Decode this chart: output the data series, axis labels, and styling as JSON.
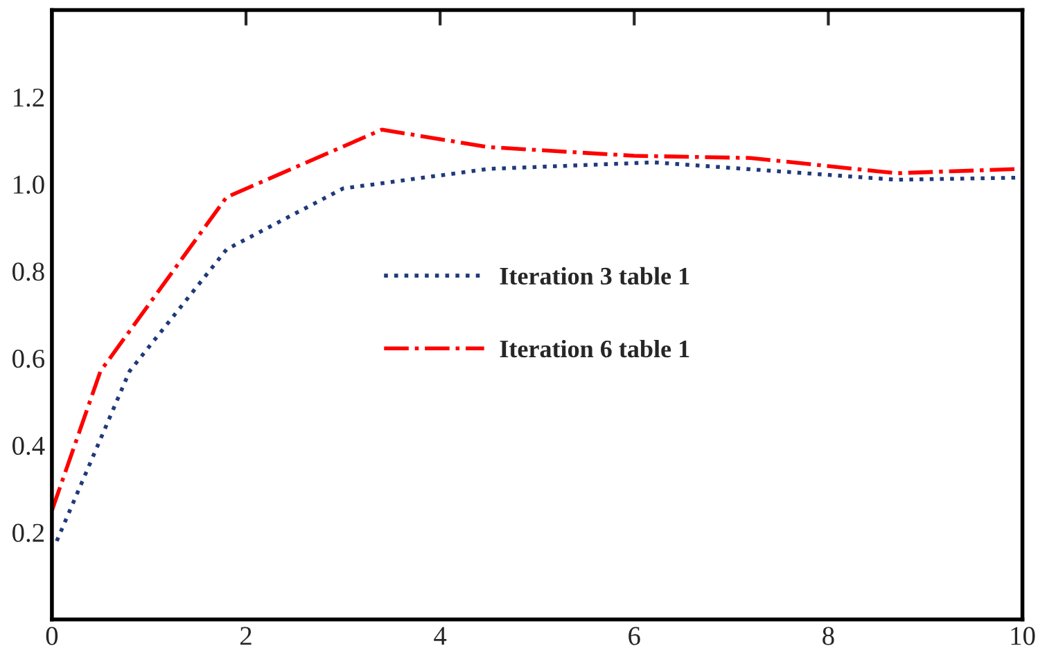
{
  "chart_data": {
    "type": "line",
    "xlim": [
      0,
      10
    ],
    "ylim": [
      0,
      1.4
    ],
    "xticks": [
      0,
      2,
      4,
      6,
      8,
      10
    ],
    "yticks": [
      0.2,
      0.4,
      0.6,
      0.8,
      {
        "value": 1.0,
        "label": "1.0"
      },
      1.2
    ],
    "grid": false,
    "legend": "center",
    "marker": "none",
    "series": [
      {
        "name": "Iteration 3 table 1",
        "color": "#1f3a7a",
        "line_style": "dotted",
        "x": [
          0.05,
          0.8,
          1.8,
          3.0,
          4.5,
          6.2,
          8.7,
          10
        ],
        "values": [
          0.18,
          0.57,
          0.85,
          0.99,
          1.035,
          1.05,
          1.01,
          1.015
        ]
      },
      {
        "name": "Iteration 6 table 1",
        "color": "#ff0000",
        "line_style": "dashdot",
        "x": [
          0,
          0.5,
          1.8,
          3.4,
          4.5,
          6.0,
          7.2,
          8.7,
          10
        ],
        "values": [
          0.25,
          0.57,
          0.97,
          1.125,
          1.085,
          1.065,
          1.06,
          1.025,
          1.035
        ]
      }
    ]
  }
}
